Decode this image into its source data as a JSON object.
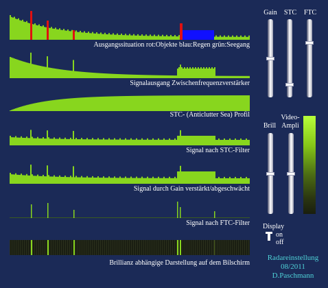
{
  "panels": [
    {
      "caption": "Ausgangssituation   rot:Objekte  blau:Regen  grün:Seegang",
      "kind": "source"
    },
    {
      "caption": "Signalausgang Zwischenfrequenzverstärker",
      "kind": "if"
    },
    {
      "caption": "STC- (Anticlutter Sea) Profil",
      "kind": "stc"
    },
    {
      "caption": "Signal nach STC-Filter",
      "kind": "afterstc"
    },
    {
      "caption": "Signal durch Gain verstärkt/abgeschwächt",
      "kind": "gain"
    },
    {
      "caption": "Signal nach FTC-Filter",
      "kind": "ftc"
    },
    {
      "caption": "Brillianz abhängige Darstellung auf dem Bilschirm",
      "kind": "screen"
    }
  ],
  "controls": {
    "gain_label": "Gain",
    "stc_label": "STC",
    "ftc_label": "FTC",
    "brill_label": "Brill",
    "video_label": "Video-\nAmpli",
    "gain_level": 0.5,
    "stc_level": 0.83,
    "ftc_level": 0.3,
    "brill_level": 0.5,
    "video_level": 0.5
  },
  "display": {
    "label": "Display",
    "on": "on",
    "off": "off"
  },
  "footer": {
    "line1": "Radareinstellung",
    "line2": "08/2011",
    "line3": "D.Paschmann"
  },
  "colors": {
    "green": "#88d61e",
    "red": "#e01010",
    "blue": "#1010ff",
    "background": "#1b2a57",
    "caption": "#ffffff",
    "footer": "#4fd2d8"
  }
}
